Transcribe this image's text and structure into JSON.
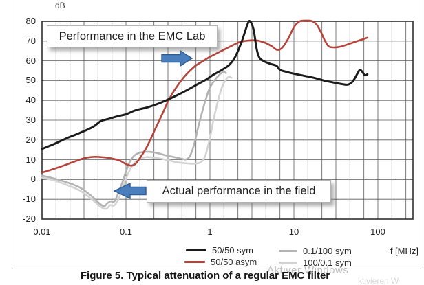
{
  "figure": {
    "y_axis_unit": "dB",
    "x_axis_unit": "f [MHz]",
    "caption": "Figure 5. Typical attenuation of a regular EMC filter",
    "watermark": "Aktiver Windows",
    "watermark_fragment": "ktivieren W"
  },
  "annotations": {
    "lab_label": "Performance in the EMC Lab",
    "field_label": "Actual performance in the field",
    "arrow_fill": "#4a7ebc",
    "arrow_stroke": "#2d5b94"
  },
  "chart_data": {
    "type": "line",
    "x_scale": "log",
    "xlabel": "f [MHz]",
    "ylabel": "dB",
    "ylim": [
      -20,
      80
    ],
    "xlim": [
      0.01,
      100
    ],
    "grid": true,
    "legend_position": "bottom",
    "x_ticks": [
      "0.01",
      "0.1",
      "1",
      "10",
      "100"
    ],
    "x_tick_values": [
      0.01,
      0.1,
      1,
      10,
      100
    ],
    "y_ticks": [
      "80",
      "70",
      "60",
      "50",
      "40",
      "30",
      "20",
      "10",
      "0",
      "-10",
      "-20"
    ],
    "y_tick_values": [
      80,
      70,
      60,
      50,
      40,
      30,
      20,
      10,
      0,
      -10,
      -20
    ],
    "series": [
      {
        "name": "50/50 sym",
        "color": "#1b1b1b",
        "width": 3,
        "points": [
          [
            0.01,
            15.5
          ],
          [
            0.014,
            18
          ],
          [
            0.02,
            21
          ],
          [
            0.028,
            23.5
          ],
          [
            0.04,
            26.5
          ],
          [
            0.05,
            29.5
          ],
          [
            0.06,
            30.5
          ],
          [
            0.08,
            32
          ],
          [
            0.1,
            33
          ],
          [
            0.13,
            35
          ],
          [
            0.18,
            36.5
          ],
          [
            0.23,
            38
          ],
          [
            0.3,
            40
          ],
          [
            0.4,
            42.5
          ],
          [
            0.55,
            45.5
          ],
          [
            0.7,
            48
          ],
          [
            0.9,
            50.5
          ],
          [
            1.1,
            53
          ],
          [
            1.4,
            55.5
          ],
          [
            1.7,
            58
          ],
          [
            2.0,
            62
          ],
          [
            2.4,
            70
          ],
          [
            2.8,
            78.5
          ],
          [
            3.0,
            80
          ],
          [
            3.3,
            76
          ],
          [
            3.6,
            66
          ],
          [
            3.9,
            61.5
          ],
          [
            4.4,
            59.8
          ],
          [
            5.2,
            58.5
          ],
          [
            6.2,
            57.5
          ],
          [
            6.8,
            55.5
          ],
          [
            8,
            54.5
          ],
          [
            10,
            53.5
          ],
          [
            13,
            52.5
          ],
          [
            17,
            51.5
          ],
          [
            23,
            50
          ],
          [
            30,
            49
          ],
          [
            38,
            48.2
          ],
          [
            44,
            48
          ],
          [
            50,
            49.5
          ],
          [
            57,
            53.5
          ],
          [
            61,
            55.4
          ],
          [
            65,
            54.5
          ],
          [
            70,
            52.7
          ],
          [
            75,
            53.2
          ]
        ]
      },
      {
        "name": "50/50 asym",
        "color": "#b5443b",
        "width": 2.6,
        "points": [
          [
            0.01,
            3.5
          ],
          [
            0.013,
            5
          ],
          [
            0.018,
            7
          ],
          [
            0.024,
            9
          ],
          [
            0.032,
            10.8
          ],
          [
            0.042,
            11.5
          ],
          [
            0.055,
            11.2
          ],
          [
            0.07,
            10.5
          ],
          [
            0.085,
            9.5
          ],
          [
            0.1,
            7.8
          ],
          [
            0.115,
            7
          ],
          [
            0.13,
            8
          ],
          [
            0.15,
            11.5
          ],
          [
            0.18,
            17
          ],
          [
            0.22,
            25
          ],
          [
            0.27,
            33
          ],
          [
            0.33,
            41
          ],
          [
            0.42,
            48
          ],
          [
            0.52,
            53
          ],
          [
            0.65,
            57
          ],
          [
            0.8,
            59.5
          ],
          [
            1.0,
            62
          ],
          [
            1.3,
            64.5
          ],
          [
            1.7,
            67
          ],
          [
            2.2,
            69.3
          ],
          [
            2.8,
            70.2
          ],
          [
            3.6,
            70.3
          ],
          [
            4.5,
            69.2
          ],
          [
            5.5,
            67.3
          ],
          [
            6.3,
            65.6
          ],
          [
            7.2,
            66.5
          ],
          [
            8.5,
            71
          ],
          [
            10,
            77
          ],
          [
            11.5,
            79.8
          ],
          [
            13,
            80.3
          ],
          [
            16,
            80.2
          ],
          [
            18.5,
            78.5
          ],
          [
            21,
            74.5
          ],
          [
            23.5,
            70
          ],
          [
            26,
            67.3
          ],
          [
            30,
            66.8
          ],
          [
            36,
            67.2
          ],
          [
            45,
            68.5
          ],
          [
            55,
            69.8
          ],
          [
            65,
            70.8
          ],
          [
            75,
            71.7
          ]
        ]
      },
      {
        "name": "0.1/100 sym",
        "color": "#b3b3b3",
        "width": 2.6,
        "points": [
          [
            0.01,
            2
          ],
          [
            0.014,
            0.5
          ],
          [
            0.02,
            -1.5
          ],
          [
            0.028,
            -4
          ],
          [
            0.038,
            -8
          ],
          [
            0.048,
            -12
          ],
          [
            0.055,
            -13.5
          ],
          [
            0.06,
            -12
          ],
          [
            0.066,
            -11
          ],
          [
            0.072,
            -11.3
          ],
          [
            0.078,
            -8.5
          ],
          [
            0.088,
            -3
          ],
          [
            0.1,
            4
          ],
          [
            0.11,
            8.5
          ],
          [
            0.125,
            12
          ],
          [
            0.15,
            13.7
          ],
          [
            0.19,
            14
          ],
          [
            0.24,
            13.3
          ],
          [
            0.3,
            12.2
          ],
          [
            0.38,
            11.3
          ],
          [
            0.46,
            10.5
          ],
          [
            0.52,
            10.2
          ],
          [
            0.58,
            12
          ],
          [
            0.65,
            18
          ],
          [
            0.72,
            26
          ],
          [
            0.8,
            33.5
          ],
          [
            0.9,
            41
          ],
          [
            1.0,
            46.5
          ],
          [
            1.15,
            50.5
          ],
          [
            1.3,
            53
          ],
          [
            1.45,
            54.5
          ],
          [
            1.55,
            53.8
          ]
        ]
      },
      {
        "name": "100/0.1 sym",
        "color": "#d3d3d3",
        "width": 2.6,
        "points": [
          [
            0.01,
            1
          ],
          [
            0.014,
            -0.5
          ],
          [
            0.02,
            -2.8
          ],
          [
            0.028,
            -5.5
          ],
          [
            0.038,
            -9.5
          ],
          [
            0.05,
            -13.8
          ],
          [
            0.058,
            -14.8
          ],
          [
            0.065,
            -13
          ],
          [
            0.072,
            -13.2
          ],
          [
            0.08,
            -10.5
          ],
          [
            0.09,
            -5
          ],
          [
            0.1,
            0.5
          ],
          [
            0.115,
            6
          ],
          [
            0.135,
            9.5
          ],
          [
            0.17,
            11.3
          ],
          [
            0.22,
            11
          ],
          [
            0.3,
            10
          ],
          [
            0.4,
            8.8
          ],
          [
            0.52,
            8.2
          ],
          [
            0.65,
            8
          ],
          [
            0.78,
            8.8
          ],
          [
            0.88,
            12
          ],
          [
            1.0,
            21
          ],
          [
            1.1,
            30
          ],
          [
            1.25,
            40
          ],
          [
            1.4,
            47
          ],
          [
            1.55,
            50.5
          ],
          [
            1.7,
            52
          ],
          [
            1.8,
            51.5
          ]
        ]
      }
    ]
  }
}
